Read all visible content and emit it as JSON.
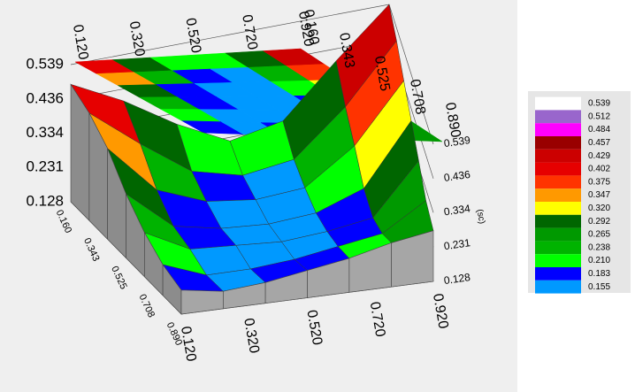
{
  "chart_data": {
    "type": "surface3d",
    "z_label": "(sc)",
    "x_grid": [
      0.12,
      0.253,
      0.387,
      0.52,
      0.653,
      0.787,
      0.92
    ],
    "y_grid": [
      0.16,
      0.282,
      0.403,
      0.525,
      0.647,
      0.768,
      0.89
    ],
    "z": [
      [
        0.48,
        0.4,
        0.3,
        0.22,
        0.25,
        0.4,
        0.539
      ],
      [
        0.45,
        0.33,
        0.22,
        0.18,
        0.2,
        0.33,
        0.5
      ],
      [
        0.4,
        0.25,
        0.19,
        0.17,
        0.18,
        0.28,
        0.45
      ],
      [
        0.32,
        0.2,
        0.17,
        0.16,
        0.17,
        0.22,
        0.4
      ],
      [
        0.26,
        0.19,
        0.18,
        0.17,
        0.18,
        0.2,
        0.35
      ],
      [
        0.22,
        0.17,
        0.17,
        0.18,
        0.2,
        0.22,
        0.3
      ],
      [
        0.2,
        0.18,
        0.19,
        0.21,
        0.23,
        0.26,
        0.28
      ]
    ],
    "xlim": [
      0.12,
      0.92
    ],
    "ylim": [
      0.16,
      0.89
    ],
    "zlim": [
      0.128,
      0.539
    ],
    "xticks": [
      {
        "value": 0.12,
        "label": "0.120"
      },
      {
        "value": 0.32,
        "label": "0.320"
      },
      {
        "value": 0.52,
        "label": "0.520"
      },
      {
        "value": 0.72,
        "label": "0.720"
      },
      {
        "value": 0.92,
        "label": "0.920"
      }
    ],
    "yticks": [
      {
        "value": 0.16,
        "label": "0.160"
      },
      0.343,
      0.525,
      0.708,
      {
        "value": 0.89,
        "label": "0.890"
      }
    ],
    "zticks": [
      0.539,
      0.436,
      0.334,
      0.231,
      0.128
    ],
    "grid": true,
    "legend": {
      "levels": [
        0.539,
        0.512,
        0.484,
        0.457,
        0.429,
        0.402,
        0.375,
        0.347,
        {
          "value": 0.32,
          "label": "0.320"
        },
        0.292,
        0.265,
        0.238,
        {
          "value": 0.21,
          "label": "0.210"
        },
        0.183,
        0.155
      ],
      "colors": [
        "#ffffff",
        "#9966cc",
        "#ff00ff",
        "#990000",
        "#cc0000",
        "#e60000",
        "#ff3300",
        "#ff9900",
        "#ffff00",
        "#006600",
        "#009900",
        "#00b300",
        "#00ff00",
        "#0000ff",
        "#0099ff"
      ]
    }
  }
}
